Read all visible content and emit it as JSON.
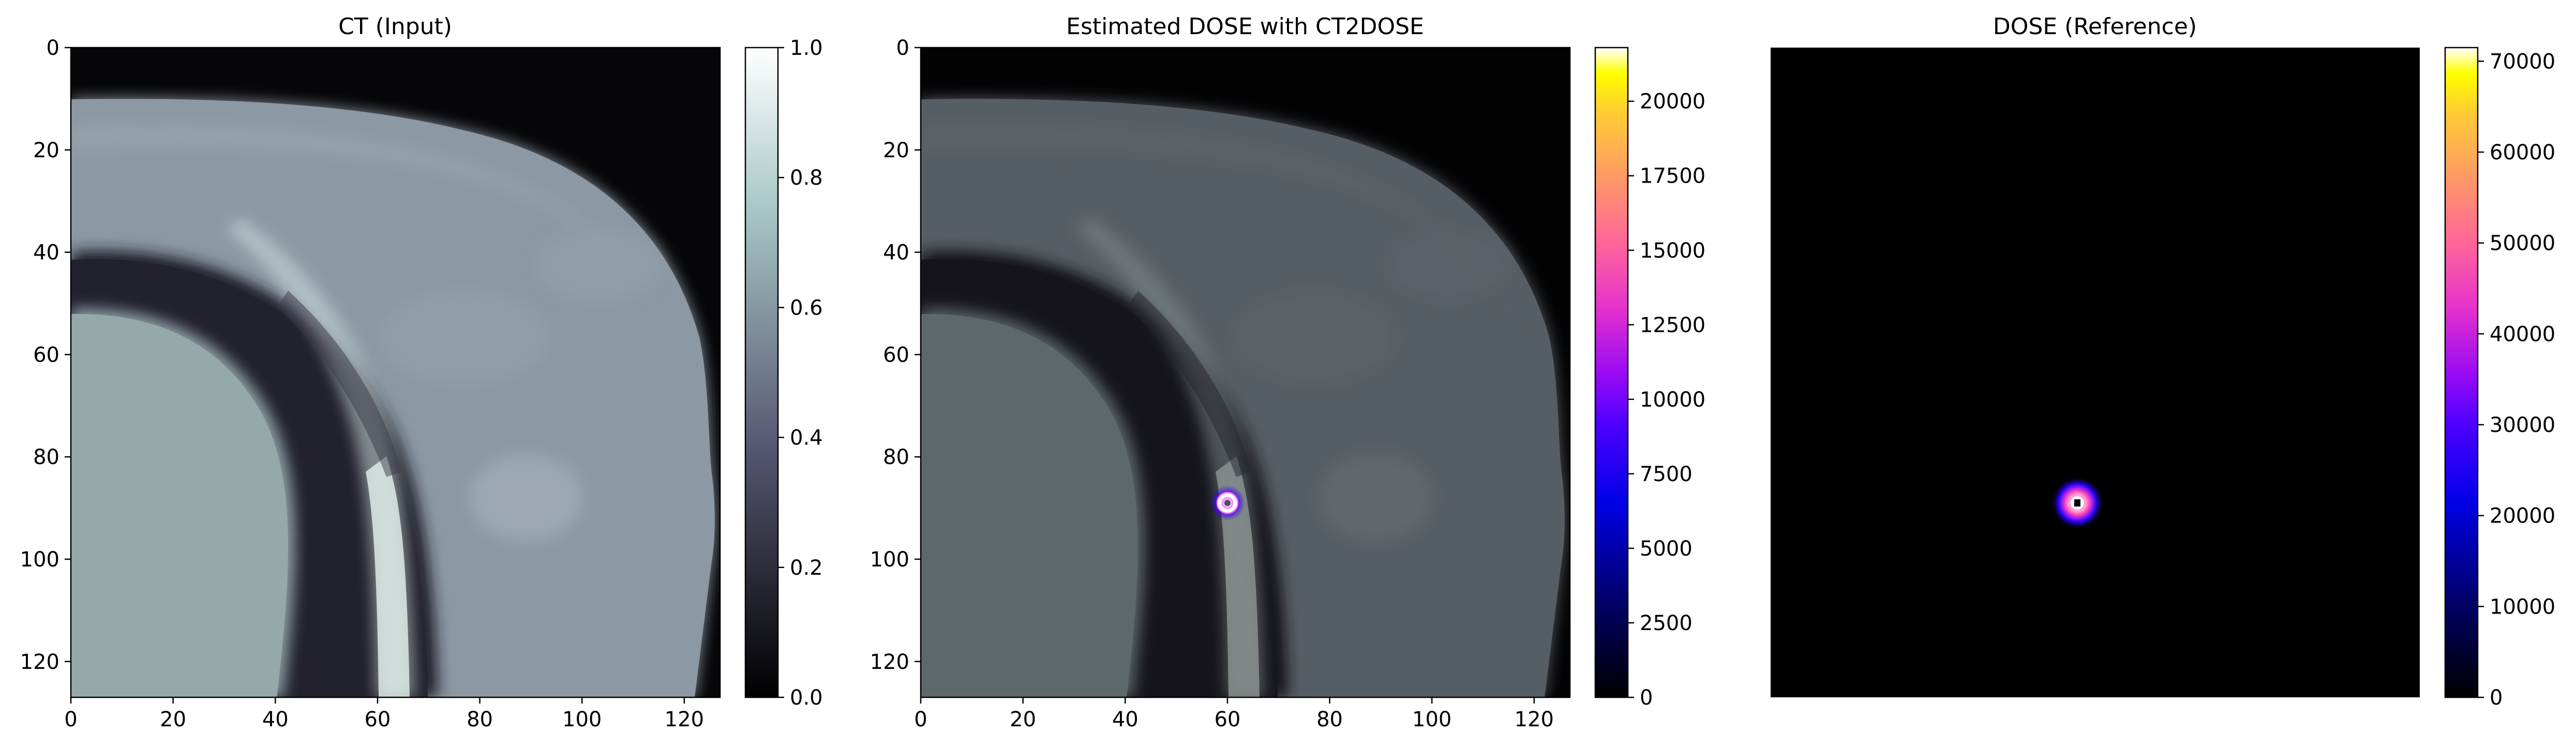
{
  "chart_data": [
    {
      "type": "heatmap",
      "title": "CT (Input)",
      "image": "CT slice (grayscale, bone colormap)",
      "colormap": "bone",
      "x_ticks": [
        0,
        20,
        40,
        60,
        80,
        100,
        120
      ],
      "y_ticks": [
        0,
        20,
        40,
        60,
        80,
        100,
        120
      ],
      "xlim": [
        0,
        127
      ],
      "ylim": [
        127,
        0
      ],
      "show_axes": true,
      "colorbar": {
        "ticks": [
          0.0,
          0.2,
          0.4,
          0.6,
          0.8,
          1.0
        ],
        "labels": [
          "0.0",
          "0.2",
          "0.4",
          "0.6",
          "0.8",
          "1.0"
        ],
        "range": [
          0,
          1
        ]
      }
    },
    {
      "type": "heatmap",
      "title": "Estimated DOSE with CT2DOSE",
      "image": "CT slice overlay with estimated dose hotspot (gnuplot2 colormap)",
      "colormap": "gnuplot2",
      "x_ticks": [
        0,
        20,
        40,
        60,
        80,
        100,
        120
      ],
      "y_ticks": [
        0,
        20,
        40,
        60,
        80,
        100,
        120
      ],
      "xlim": [
        0,
        127
      ],
      "ylim": [
        127,
        0
      ],
      "show_axes": true,
      "hotspot": {
        "x": 60,
        "y": 89
      },
      "colorbar": {
        "ticks": [
          0,
          2500,
          5000,
          7500,
          10000,
          12500,
          15000,
          17500,
          20000
        ],
        "range": [
          0,
          21800
        ]
      }
    },
    {
      "type": "heatmap",
      "title": "DOSE (Reference)",
      "image": "Reference dose map (gnuplot2 colormap)",
      "colormap": "gnuplot2",
      "xlim": [
        0,
        127
      ],
      "ylim": [
        127,
        0
      ],
      "show_axes": false,
      "hotspot": {
        "x": 60,
        "y": 89
      },
      "colorbar": {
        "ticks": [
          0,
          10000,
          20000,
          30000,
          40000,
          50000,
          60000,
          70000
        ],
        "range": [
          0,
          71500
        ]
      }
    }
  ]
}
